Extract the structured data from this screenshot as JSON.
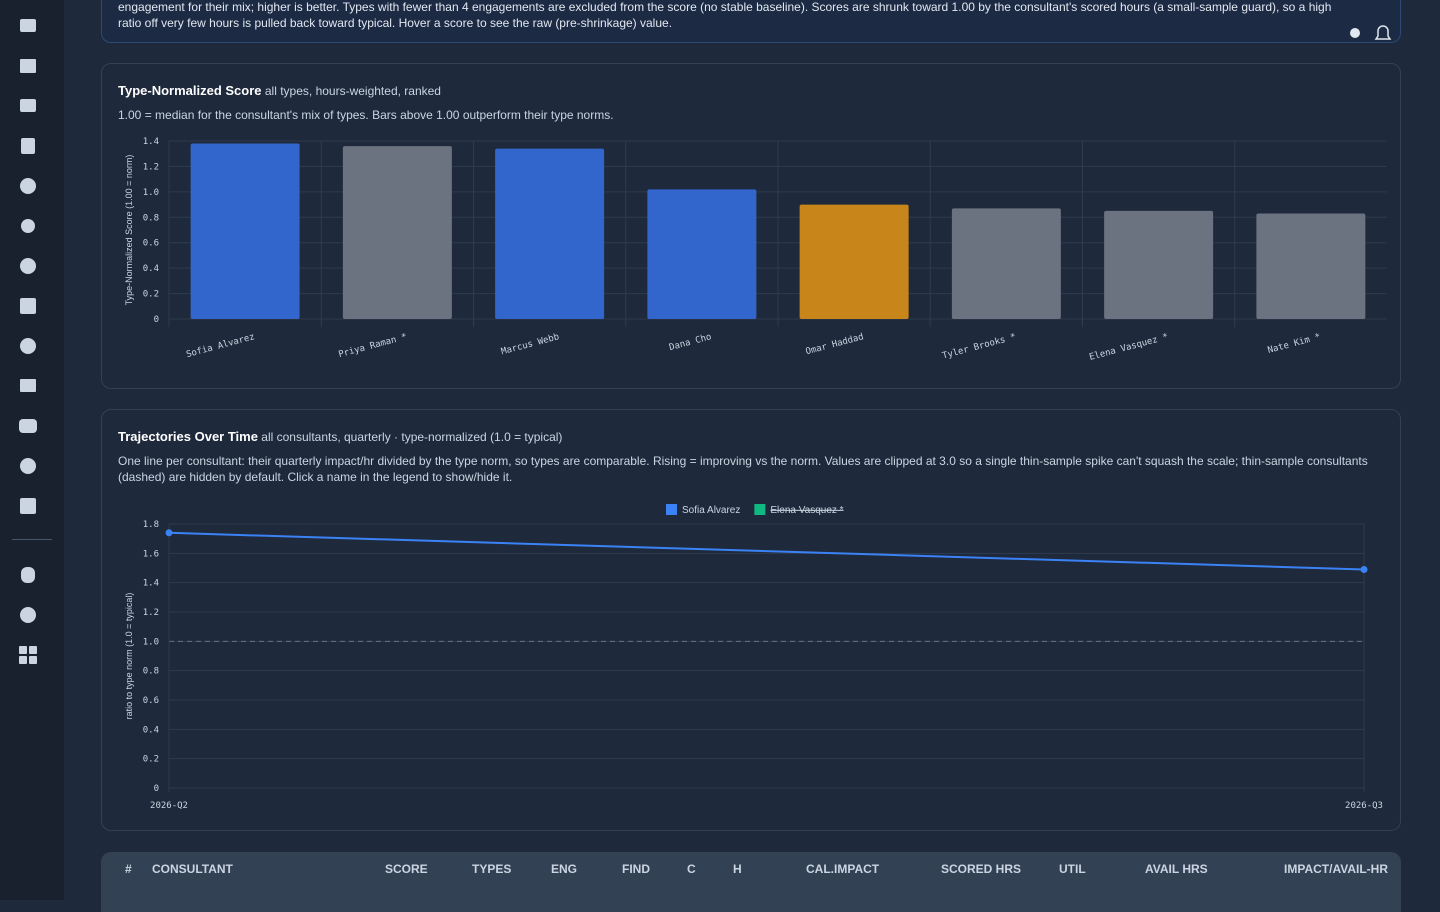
{
  "notice": {
    "text": "engagement for their mix; higher is better. Types with fewer than 4 engagements are excluded from the score (no stable baseline). Scores are shrunk toward 1.00 by the consultant's scored hours (a small-sample guard), so a high ratio off very few hours is pulled back toward typical. Hover a score to see the raw (pre-shrinkage) value."
  },
  "chart_data": [
    {
      "type": "bar",
      "title": "Type-Normalized Score",
      "subtitle": "all types, hours-weighted, ranked",
      "description": "1.00 = median for the consultant's mix of types. Bars above 1.00 outperform their type norms.",
      "y_label": "Type-Normalized Score (1.00 = norm)",
      "categories": [
        "Sofia Alvarez",
        "Priya Raman *",
        "Marcus Webb",
        "Dana Cho",
        "Omar Haddad",
        "Tyler Brooks *",
        "Elena Vasquez *",
        "Nate Kim *"
      ],
      "values": [
        1.38,
        1.36,
        1.34,
        1.02,
        0.9,
        0.87,
        0.85,
        0.83
      ],
      "colors": [
        "#3366cc",
        "#6b7280",
        "#3366cc",
        "#3366cc",
        "#c8861a",
        "#6b7280",
        "#6b7280",
        "#6b7280"
      ],
      "ylim": [
        0,
        1.4
      ],
      "yticks": [
        0,
        0.2,
        0.4,
        0.6,
        0.8,
        {
          "value": 1,
          "label": "1.0"
        },
        1.2,
        1.4
      ],
      "grid": true
    },
    {
      "type": "line",
      "title": "Trajectories Over Time",
      "subtitle": "all consultants, quarterly · type-normalized (1.0 = typical)",
      "description": "One line per consultant: their quarterly impact/hr divided by the type norm, so types are comparable. Rising = improving vs the norm. Values are clipped at 3.0 so a single thin-sample spike can't squash the scale; thin-sample consultants (dashed) are hidden by default. Click a name in the legend to show/hide it.",
      "y_label": "ratio to type norm (1.0 = typical)",
      "categories": [
        "2026-Q2",
        "2026-Q3"
      ],
      "series": [
        {
          "name": "Sofia Alvarez",
          "color": "#3b82f6",
          "values": [
            1.74,
            1.49
          ]
        },
        {
          "name": "Elena Vasquez *",
          "color": "#10b981",
          "values": [
            null,
            null
          ],
          "hidden": true
        }
      ],
      "reference_line": 1,
      "ylim": [
        0,
        1.8
      ],
      "yticks": [
        0,
        0.2,
        0.4,
        0.6,
        0.8,
        {
          "value": 1,
          "label": "1.0"
        },
        1.2,
        1.4,
        1.6,
        1.8
      ],
      "grid": true
    }
  ],
  "table": {
    "columns": [
      "#",
      "CONSULTANT",
      "SCORE",
      "TYPES",
      "ENG",
      "FIND",
      "C",
      "H",
      "CAL.IMPACT",
      "SCORED HRS",
      "UTIL",
      "AVAIL HRS",
      "IMPACT/AVAIL-HR"
    ]
  }
}
